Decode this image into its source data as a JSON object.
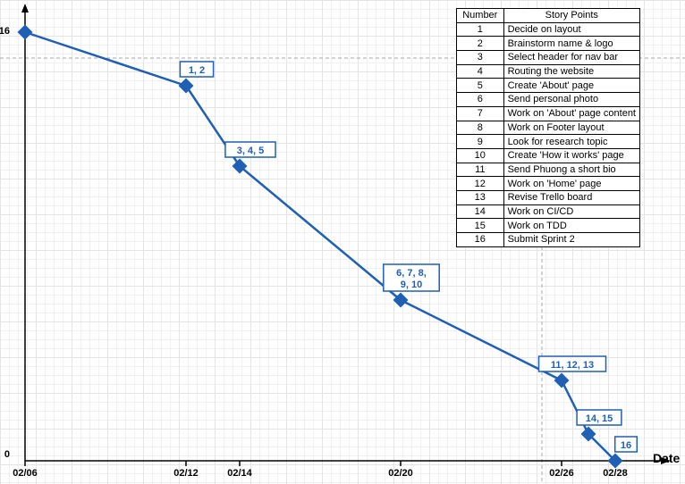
{
  "chart_data": {
    "type": "line",
    "xlabel": "Date",
    "ylabel": "",
    "y_ticks": [
      "16",
      "0"
    ],
    "x_ticks": [
      {
        "label": "02/06",
        "day": 6
      },
      {
        "label": "02/12",
        "day": 12
      },
      {
        "label": "02/14",
        "day": 14
      },
      {
        "label": "02/20",
        "day": 20
      },
      {
        "label": "02/26",
        "day": 26
      },
      {
        "label": "02/28",
        "day": 28
      }
    ],
    "xlim": [
      6,
      28
    ],
    "ylim": [
      0,
      16
    ],
    "series": [
      {
        "color": "#1f5fb4",
        "points": [
          {
            "day": 6,
            "value": 16
          },
          {
            "day": 12,
            "value": 14
          },
          {
            "day": 14,
            "value": 11
          },
          {
            "day": 20,
            "value": 6
          },
          {
            "day": 26,
            "value": 3
          },
          {
            "day": 27,
            "value": 1
          },
          {
            "day": 28,
            "value": 0
          }
        ]
      }
    ],
    "annotations": [
      {
        "lines": [
          "1, 2"
        ],
        "day": 12,
        "value": 14
      },
      {
        "lines": [
          "3, 4, 5"
        ],
        "day": 14,
        "value": 11
      },
      {
        "lines": [
          "6, 7, 8,",
          "9, 10"
        ],
        "day": 20,
        "value": 6
      },
      {
        "lines": [
          "11, 12, 13"
        ],
        "day": 26,
        "value": 3
      },
      {
        "lines": [
          "14, 15"
        ],
        "day": 27,
        "value": 1
      },
      {
        "lines": [
          "16"
        ],
        "day": 28,
        "value": 0
      }
    ],
    "table": {
      "headers": [
        "Number",
        "Story Points"
      ],
      "rows": [
        [
          "1",
          "Decide on layout"
        ],
        [
          "2",
          "Brainstorm name & logo"
        ],
        [
          "3",
          "Select header for nav bar"
        ],
        [
          "4",
          "Routing the website"
        ],
        [
          "5",
          "Create 'About' page"
        ],
        [
          "6",
          "Send personal photo"
        ],
        [
          "7",
          "Work on 'About' page content"
        ],
        [
          "8",
          "Work on Footer layout"
        ],
        [
          "9",
          "Look for research topic"
        ],
        [
          "10",
          "Create 'How it works' page"
        ],
        [
          "11",
          "Send Phuong a short bio"
        ],
        [
          "12",
          "Work on 'Home' page"
        ],
        [
          "13",
          "Revise Trello board"
        ],
        [
          "14",
          "Work on CI/CD"
        ],
        [
          "15",
          "Work on TDD"
        ],
        [
          "16",
          "Submit Sprint 2"
        ]
      ]
    }
  }
}
